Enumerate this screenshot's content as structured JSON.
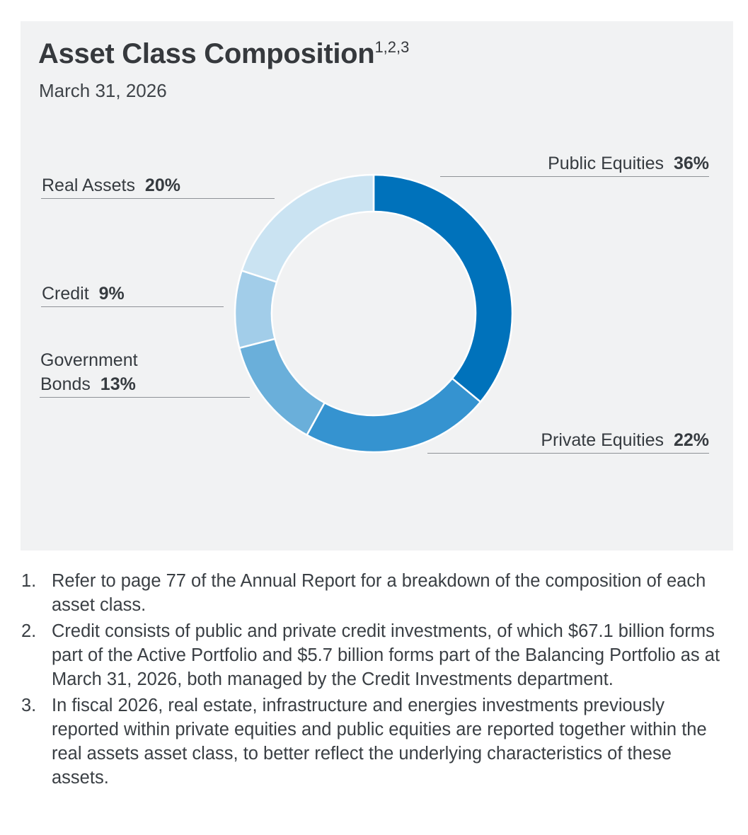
{
  "title": "Asset Class Composition",
  "title_superscript": "1,2,3",
  "subtitle": "March 31, 2026",
  "chart_data": {
    "type": "pie",
    "variant": "donut",
    "categories": [
      "Public Equities",
      "Private Equities",
      "Government Bonds",
      "Credit",
      "Real Assets"
    ],
    "values": [
      36,
      22,
      13,
      9,
      20
    ],
    "value_labels": [
      "36%",
      "22%",
      "13%",
      "9%",
      "20%"
    ],
    "colors": [
      "#0072bb",
      "#3593d0",
      "#6aafda",
      "#a2cde9",
      "#cae3f2"
    ],
    "legend": "none",
    "grid": false
  },
  "labels": {
    "public_equities": {
      "name": "Public Equities",
      "value": "36%"
    },
    "private_equities": {
      "name": "Private Equities",
      "value": "22%"
    },
    "government_bonds": {
      "name_line1": "Government",
      "name_line2": "Bonds",
      "value": "13%"
    },
    "credit": {
      "name": "Credit",
      "value": "9%"
    },
    "real_assets": {
      "name": "Real Assets",
      "value": "20%"
    }
  },
  "footnotes": [
    {
      "num": "1.",
      "text": "Refer to page 77 of the Annual Report for a breakdown of the composition of each asset class."
    },
    {
      "num": "2.",
      "text": "Credit consists of public and private credit investments, of which $67.1 billion forms part of the Active Portfolio and $5.7 billion forms part of the Balancing Portfolio as at March 31, 2026, both managed by the Credit Investments department."
    },
    {
      "num": "3.",
      "text": "In fiscal 2026, real estate, infrastructure and energies investments previously reported within private equities and public equities are reported together within the real assets asset class, to better reflect the underlying characteristics of these assets."
    }
  ]
}
